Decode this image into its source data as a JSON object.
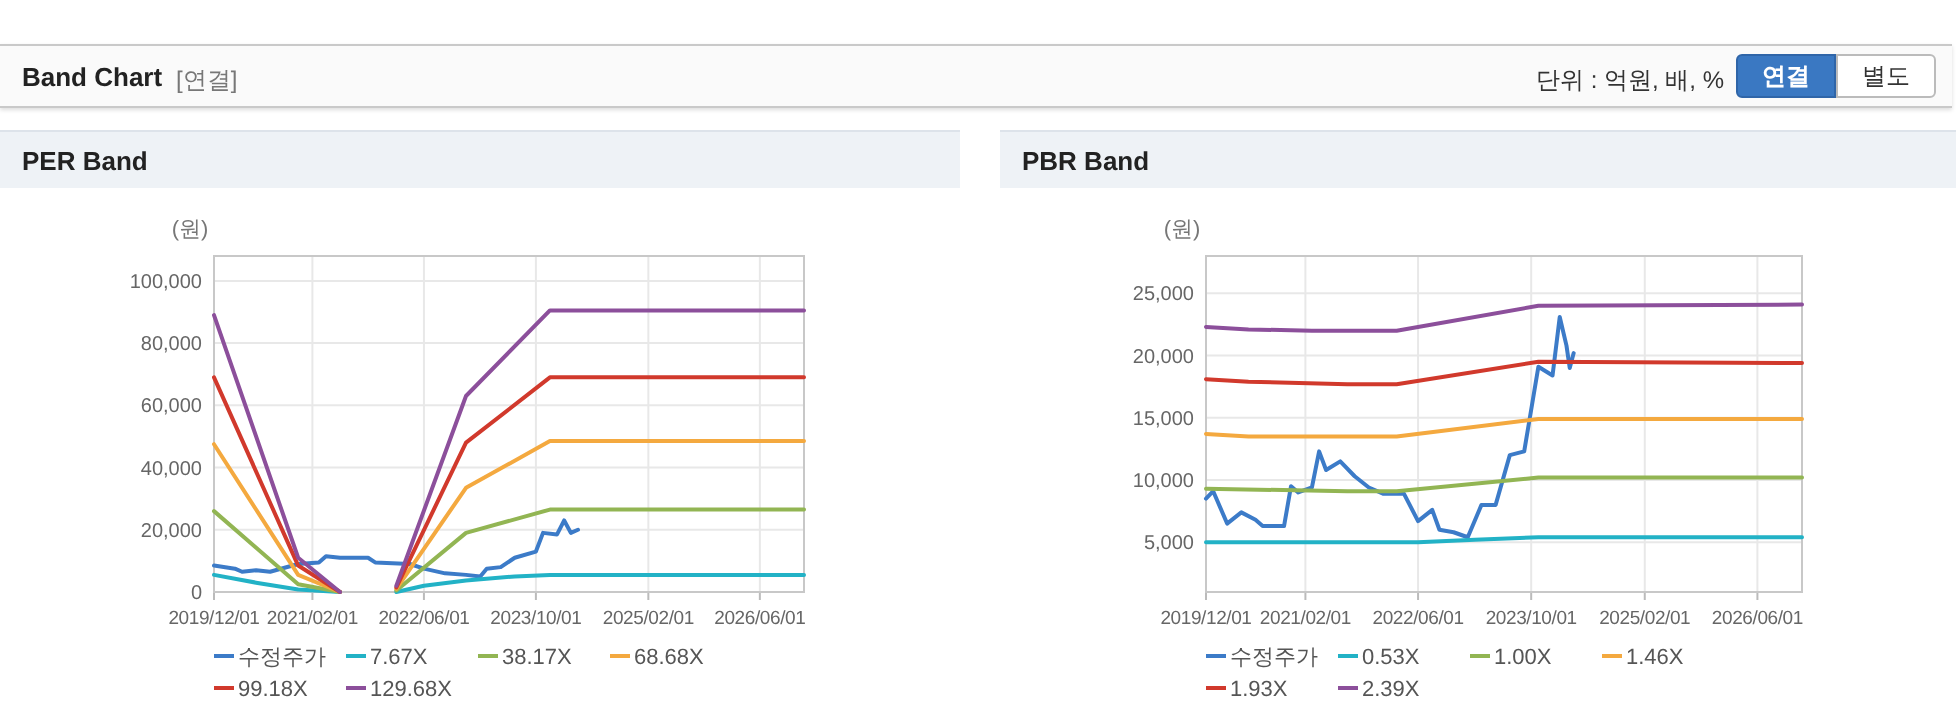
{
  "chart_data": [
    {
      "type": "other",
      "title": "Band Chart",
      "annotations": [
        "[연결]",
        "단위 : 억원, 배, %",
        "연결",
        "별도"
      ]
    },
    {
      "type": "line",
      "title": "PER Band",
      "ylabel": "(원)",
      "grid": true,
      "legend": "bottom",
      "line_style": "solid",
      "marker": "none",
      "xlim": [
        "2019-12-01",
        "2026-12-10"
      ],
      "xticks": [
        {
          "value": "2019-12-01",
          "label": "2019/12/01"
        },
        {
          "value": "2021-02-01",
          "label": "2021/02/01"
        },
        {
          "value": "2022-06-01",
          "label": "2022/06/01"
        },
        {
          "value": "2023-10-01",
          "label": "2023/10/01"
        },
        {
          "value": "2025-02-01",
          "label": "2025/02/01"
        },
        {
          "value": "2026-06-01",
          "label": "2026/06/01"
        }
      ],
      "ylim": [
        0,
        108000
      ],
      "yticks": [
        0,
        {
          "value": 20000,
          "label": "20,000"
        },
        {
          "value": 40000,
          "label": "40,000"
        },
        {
          "value": 60000,
          "label": "60,000"
        },
        {
          "value": 80000,
          "label": "80,000"
        },
        {
          "value": 100000,
          "label": "100,000"
        }
      ],
      "series": [
        {
          "name": "수정주가",
          "color": "#3c7bc8",
          "x": [
            "2019-12",
            "2020-03",
            "2020-04",
            "2020-06",
            "2020-08",
            "2020-12",
            "2021-03",
            "2021-04",
            "2021-06",
            "2021-10",
            "2021-11",
            "2022-04",
            "2022-06",
            "2022-09",
            "2022-12",
            "2023-02",
            "2023-03",
            "2023-05",
            "2023-07",
            "2023-10",
            "2023-11",
            "2024-01",
            "2024-02",
            "2024-03",
            "2024-04"
          ],
          "values": [
            8500,
            7500,
            6500,
            7000,
            6500,
            9000,
            9500,
            11500,
            11000,
            11000,
            9500,
            9000,
            7500,
            6000,
            5500,
            5000,
            7500,
            8000,
            11000,
            13000,
            19000,
            18500,
            23000,
            19000,
            20000
          ]
        },
        {
          "name": "7.67X",
          "color": "#22b2c6",
          "x": [
            "2019-12",
            "2020-06",
            "2020-12",
            "2021-06",
            "2021-10",
            "2022-02",
            "2022-06",
            "2022-12",
            "2023-07",
            "2023-12",
            "2026-12-10"
          ],
          "values": [
            5500,
            3000,
            800,
            0,
            null,
            0,
            2000,
            3700,
            5000,
            5500,
            5500
          ]
        },
        {
          "name": "38.17X",
          "color": "#92b553",
          "x": [
            "2019-12",
            "2020-12",
            "2021-06",
            "2021-10",
            "2022-02",
            "2022-12",
            "2023-12",
            "2026-12-10"
          ],
          "values": [
            26000,
            2500,
            0,
            null,
            500,
            19000,
            26500,
            26500
          ]
        },
        {
          "name": "68.68X",
          "color": "#f4a93f",
          "x": [
            "2019-12",
            "2020-12",
            "2021-06",
            "2021-10",
            "2022-02",
            "2022-12",
            "2023-12",
            "2026-12-10"
          ],
          "values": [
            47500,
            5500,
            0,
            null,
            1000,
            33500,
            48500,
            48500
          ]
        },
        {
          "name": "99.18X",
          "color": "#d1392c",
          "x": [
            "2019-12",
            "2020-12",
            "2021-06",
            "2021-10",
            "2022-02",
            "2022-12",
            "2023-12",
            "2026-12-10"
          ],
          "values": [
            69000,
            8500,
            0,
            null,
            1500,
            48000,
            69000,
            69000
          ]
        },
        {
          "name": "129.68X",
          "color": "#8c4f9b",
          "x": [
            "2019-12",
            "2020-12",
            "2021-06",
            "2021-10",
            "2022-02",
            "2022-12",
            "2023-12",
            "2026-12-10"
          ],
          "values": [
            89000,
            11000,
            0,
            null,
            2000,
            63000,
            90500,
            90500
          ]
        }
      ]
    },
    {
      "type": "line",
      "title": "PBR Band",
      "ylabel": "(원)",
      "grid": true,
      "legend": "bottom",
      "line_style": "solid",
      "marker": "none",
      "xlim": [
        "2019-12-01",
        "2026-12-10"
      ],
      "xticks": [
        {
          "value": "2019-12-01",
          "label": "2019/12/01"
        },
        {
          "value": "2021-02-01",
          "label": "2021/02/01"
        },
        {
          "value": "2022-06-01",
          "label": "2022/06/01"
        },
        {
          "value": "2023-10-01",
          "label": "2023/10/01"
        },
        {
          "value": "2025-02-01",
          "label": "2025/02/01"
        },
        {
          "value": "2026-06-01",
          "label": "2026/06/01"
        }
      ],
      "ylim": [
        1000,
        28000
      ],
      "yticks": [
        {
          "value": 5000,
          "label": "5,000"
        },
        {
          "value": 10000,
          "label": "10,000"
        },
        {
          "value": 15000,
          "label": "15,000"
        },
        {
          "value": 20000,
          "label": "20,000"
        },
        {
          "value": 25000,
          "label": "25,000"
        }
      ],
      "series": [
        {
          "name": "수정주가",
          "color": "#3c7bc8",
          "x": [
            "2019-12",
            "2020-01",
            "2020-03",
            "2020-05",
            "2020-07",
            "2020-08",
            "2020-11",
            "2020-12",
            "2021-01",
            "2021-03",
            "2021-04",
            "2021-05",
            "2021-07",
            "2021-09",
            "2021-11",
            "2022-01",
            "2022-04",
            "2022-06",
            "2022-08",
            "2022-09",
            "2022-11",
            "2023-01",
            "2023-03",
            "2023-05",
            "2023-07",
            "2023-09",
            "2023-11",
            "2024-01",
            "2024-02",
            "2024-03",
            "2024-03-15",
            "2024-04"
          ],
          "values": [
            8500,
            9100,
            6500,
            7400,
            6800,
            6300,
            6300,
            9500,
            9000,
            9400,
            12300,
            10800,
            11500,
            10300,
            9400,
            8900,
            8900,
            6700,
            7600,
            6000,
            5800,
            5400,
            8000,
            8000,
            12000,
            12300,
            19100,
            18400,
            23100,
            20800,
            19000,
            20200
          ]
        },
        {
          "name": "0.53X",
          "color": "#22b2c6",
          "x": [
            "2019-12",
            "2022-06",
            "2023-02",
            "2023-11",
            "2026-12-10"
          ],
          "values": [
            5000,
            5000,
            5200,
            5400,
            5400
          ]
        },
        {
          "name": "1.00X",
          "color": "#92b553",
          "x": [
            "2019-12",
            "2021-08",
            "2022-03",
            "2023-11",
            "2026-12-10"
          ],
          "values": [
            9300,
            9100,
            9100,
            10200,
            10200
          ]
        },
        {
          "name": "1.46X",
          "color": "#f4a93f",
          "x": [
            "2019-12",
            "2020-06",
            "2022-03",
            "2023-11",
            "2026-12-10"
          ],
          "values": [
            13700,
            13500,
            13500,
            14900,
            14900
          ]
        },
        {
          "name": "1.93X",
          "color": "#d1392c",
          "x": [
            "2019-12",
            "2020-06",
            "2021-08",
            "2022-03",
            "2023-11",
            "2026-12-10"
          ],
          "values": [
            18100,
            17900,
            17700,
            17700,
            19500,
            19400
          ]
        },
        {
          "name": "2.39X",
          "color": "#8c4f9b",
          "x": [
            "2019-12",
            "2020-06",
            "2021-03",
            "2022-03",
            "2023-11",
            "2026-12-10"
          ],
          "values": [
            22300,
            22100,
            22000,
            22000,
            24000,
            24100
          ]
        }
      ]
    }
  ]
}
